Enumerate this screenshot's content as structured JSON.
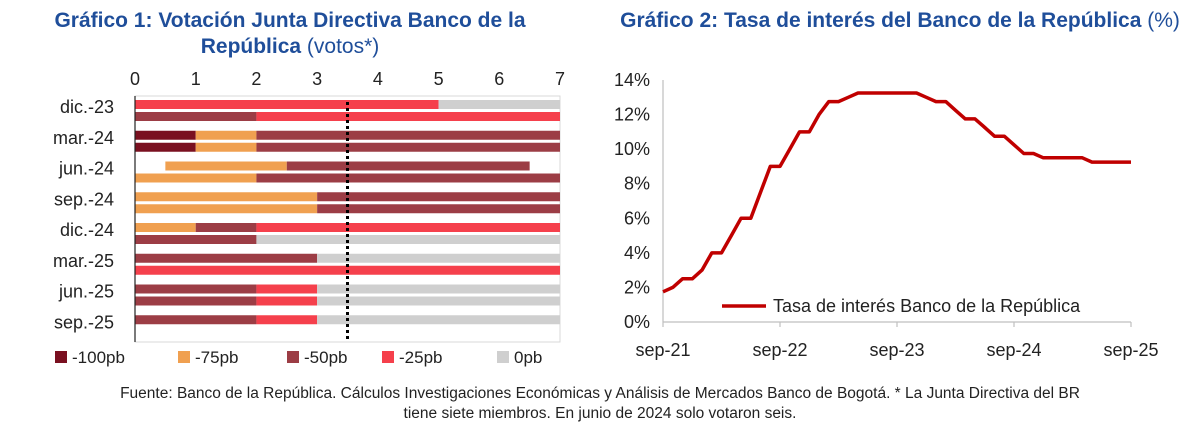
{
  "chart1": {
    "title_bold": "Gráfico 1: Votación Junta Directiva Banco de la República",
    "title_rest": " (votos*)",
    "legend": [
      {
        "label": "-100pb",
        "color": "#7a1020"
      },
      {
        "label": "-75pb",
        "color": "#f0a050"
      },
      {
        "label": "-50pb",
        "color": "#9c3d45"
      },
      {
        "label": "-25pb",
        "color": "#f5404c"
      },
      {
        "label": "0pb",
        "color": "#cfcfcf"
      }
    ],
    "chart_data": {
      "type": "bar",
      "orientation": "horizontal-stacked",
      "xlim": [
        0,
        7
      ],
      "xticks": [
        "0",
        "1",
        "2",
        "3",
        "4",
        "5",
        "6",
        "7"
      ],
      "reference_line_x": 3.5,
      "categories": [
        "dic.-23",
        "mar.-24",
        "jun.-24",
        "sep.-24",
        "dic.-24",
        "mar.-25",
        "jun.-25",
        "sep.-25"
      ],
      "rows": [
        {
          "category": "dic.-23",
          "bars": [
            [
              {
                "key": "-25pb",
                "start": 0,
                "end": 5
              },
              {
                "key": "0pb",
                "start": 5,
                "end": 7
              }
            ],
            [
              {
                "key": "-50pb",
                "start": 0,
                "end": 2
              },
              {
                "key": "-25pb",
                "start": 2,
                "end": 7
              }
            ]
          ]
        },
        {
          "category": "mar.-24",
          "bars": [
            [
              {
                "key": "-100pb",
                "start": 0,
                "end": 1
              },
              {
                "key": "-75pb",
                "start": 1,
                "end": 2
              },
              {
                "key": "-50pb",
                "start": 2,
                "end": 7
              }
            ],
            [
              {
                "key": "-100pb",
                "start": 0,
                "end": 1
              },
              {
                "key": "-75pb",
                "start": 1,
                "end": 2
              },
              {
                "key": "-50pb",
                "start": 2,
                "end": 7
              }
            ]
          ]
        },
        {
          "category": "jun.-24",
          "bars": [
            [
              {
                "key": "-75pb",
                "start": 0.5,
                "end": 2.5
              },
              {
                "key": "-50pb",
                "start": 2.5,
                "end": 6.5
              }
            ],
            [
              {
                "key": "-75pb",
                "start": 0,
                "end": 2
              },
              {
                "key": "-50pb",
                "start": 2,
                "end": 7
              }
            ]
          ]
        },
        {
          "category": "sep.-24",
          "bars": [
            [
              {
                "key": "-75pb",
                "start": 0,
                "end": 3
              },
              {
                "key": "-50pb",
                "start": 3,
                "end": 7
              }
            ],
            [
              {
                "key": "-75pb",
                "start": 0,
                "end": 3
              },
              {
                "key": "-50pb",
                "start": 3,
                "end": 7
              }
            ]
          ]
        },
        {
          "category": "dic.-24",
          "bars": [
            [
              {
                "key": "-75pb",
                "start": 0,
                "end": 1
              },
              {
                "key": "-50pb",
                "start": 1,
                "end": 2
              },
              {
                "key": "-25pb",
                "start": 2,
                "end": 7
              }
            ],
            [
              {
                "key": "-50pb",
                "start": 0,
                "end": 2
              },
              {
                "key": "0pb",
                "start": 2,
                "end": 7
              }
            ]
          ]
        },
        {
          "category": "mar.-25",
          "bars": [
            [
              {
                "key": "-50pb",
                "start": 0,
                "end": 3
              },
              {
                "key": "0pb",
                "start": 3,
                "end": 7
              }
            ],
            [
              {
                "key": "-25pb",
                "start": 0,
                "end": 7
              }
            ]
          ]
        },
        {
          "category": "jun.-25",
          "bars": [
            [
              {
                "key": "-50pb",
                "start": 0,
                "end": 2
              },
              {
                "key": "-25pb",
                "start": 2,
                "end": 3
              },
              {
                "key": "0pb",
                "start": 3,
                "end": 7
              }
            ],
            [
              {
                "key": "-50pb",
                "start": 0,
                "end": 2
              },
              {
                "key": "-25pb",
                "start": 2,
                "end": 3
              },
              {
                "key": "0pb",
                "start": 3,
                "end": 7
              }
            ]
          ]
        },
        {
          "category": "sep.-25",
          "bars": [
            [
              {
                "key": "-50pb",
                "start": 0,
                "end": 2
              },
              {
                "key": "-25pb",
                "start": 2,
                "end": 3
              },
              {
                "key": "0pb",
                "start": 3,
                "end": 7
              }
            ]
          ]
        }
      ]
    }
  },
  "chart2": {
    "title_bold": "Gráfico 2: Tasa de interés del Banco de la República",
    "title_rest": " (%)",
    "chart_data": {
      "type": "line",
      "ylim": [
        0,
        14
      ],
      "yticks": [
        "0%",
        "2%",
        "4%",
        "6%",
        "8%",
        "10%",
        "12%",
        "14%"
      ],
      "xticks": [
        "sep-21",
        "sep-22",
        "sep-23",
        "sep-24",
        "sep-25"
      ],
      "xlim": [
        "2021-09",
        "2025-09"
      ],
      "series": [
        {
          "name": "Tasa de interés Banco de la República",
          "color": "#c00000",
          "points": [
            [
              "2021-09",
              1.75
            ],
            [
              "2021-10",
              2.0
            ],
            [
              "2021-11",
              2.5
            ],
            [
              "2021-12",
              2.5
            ],
            [
              "2022-01",
              3.0
            ],
            [
              "2022-02",
              4.0
            ],
            [
              "2022-03",
              4.0
            ],
            [
              "2022-04",
              5.0
            ],
            [
              "2022-05",
              6.0
            ],
            [
              "2022-06",
              6.0
            ],
            [
              "2022-07",
              7.5
            ],
            [
              "2022-08",
              9.0
            ],
            [
              "2022-09",
              9.0
            ],
            [
              "2022-10",
              10.0
            ],
            [
              "2022-11",
              11.0
            ],
            [
              "2022-12",
              11.0
            ],
            [
              "2023-01",
              12.0
            ],
            [
              "2023-02",
              12.75
            ],
            [
              "2023-03",
              12.75
            ],
            [
              "2023-04",
              13.0
            ],
            [
              "2023-05",
              13.25
            ],
            [
              "2023-06",
              13.25
            ],
            [
              "2023-07",
              13.25
            ],
            [
              "2023-08",
              13.25
            ],
            [
              "2023-09",
              13.25
            ],
            [
              "2023-10",
              13.25
            ],
            [
              "2023-11",
              13.25
            ],
            [
              "2023-12",
              13.0
            ],
            [
              "2024-01",
              12.75
            ],
            [
              "2024-02",
              12.75
            ],
            [
              "2024-03",
              12.25
            ],
            [
              "2024-04",
              11.75
            ],
            [
              "2024-05",
              11.75
            ],
            [
              "2024-06",
              11.25
            ],
            [
              "2024-07",
              10.75
            ],
            [
              "2024-08",
              10.75
            ],
            [
              "2024-09",
              10.25
            ],
            [
              "2024-10",
              9.75
            ],
            [
              "2024-11",
              9.75
            ],
            [
              "2024-12",
              9.5
            ],
            [
              "2025-01",
              9.5
            ],
            [
              "2025-02",
              9.5
            ],
            [
              "2025-03",
              9.5
            ],
            [
              "2025-04",
              9.5
            ],
            [
              "2025-05",
              9.25
            ],
            [
              "2025-06",
              9.25
            ],
            [
              "2025-07",
              9.25
            ],
            [
              "2025-08",
              9.25
            ],
            [
              "2025-09",
              9.25
            ]
          ]
        }
      ],
      "legend_position": "bottom-right"
    }
  },
  "footer": {
    "line1": "Fuente: Banco de la República. Cálculos Investigaciones Económicas y Análisis de Mercados Banco de Bogotá. * La Junta Directiva del BR",
    "line2": "tiene siete miembros. En junio de 2024 solo votaron seis."
  }
}
